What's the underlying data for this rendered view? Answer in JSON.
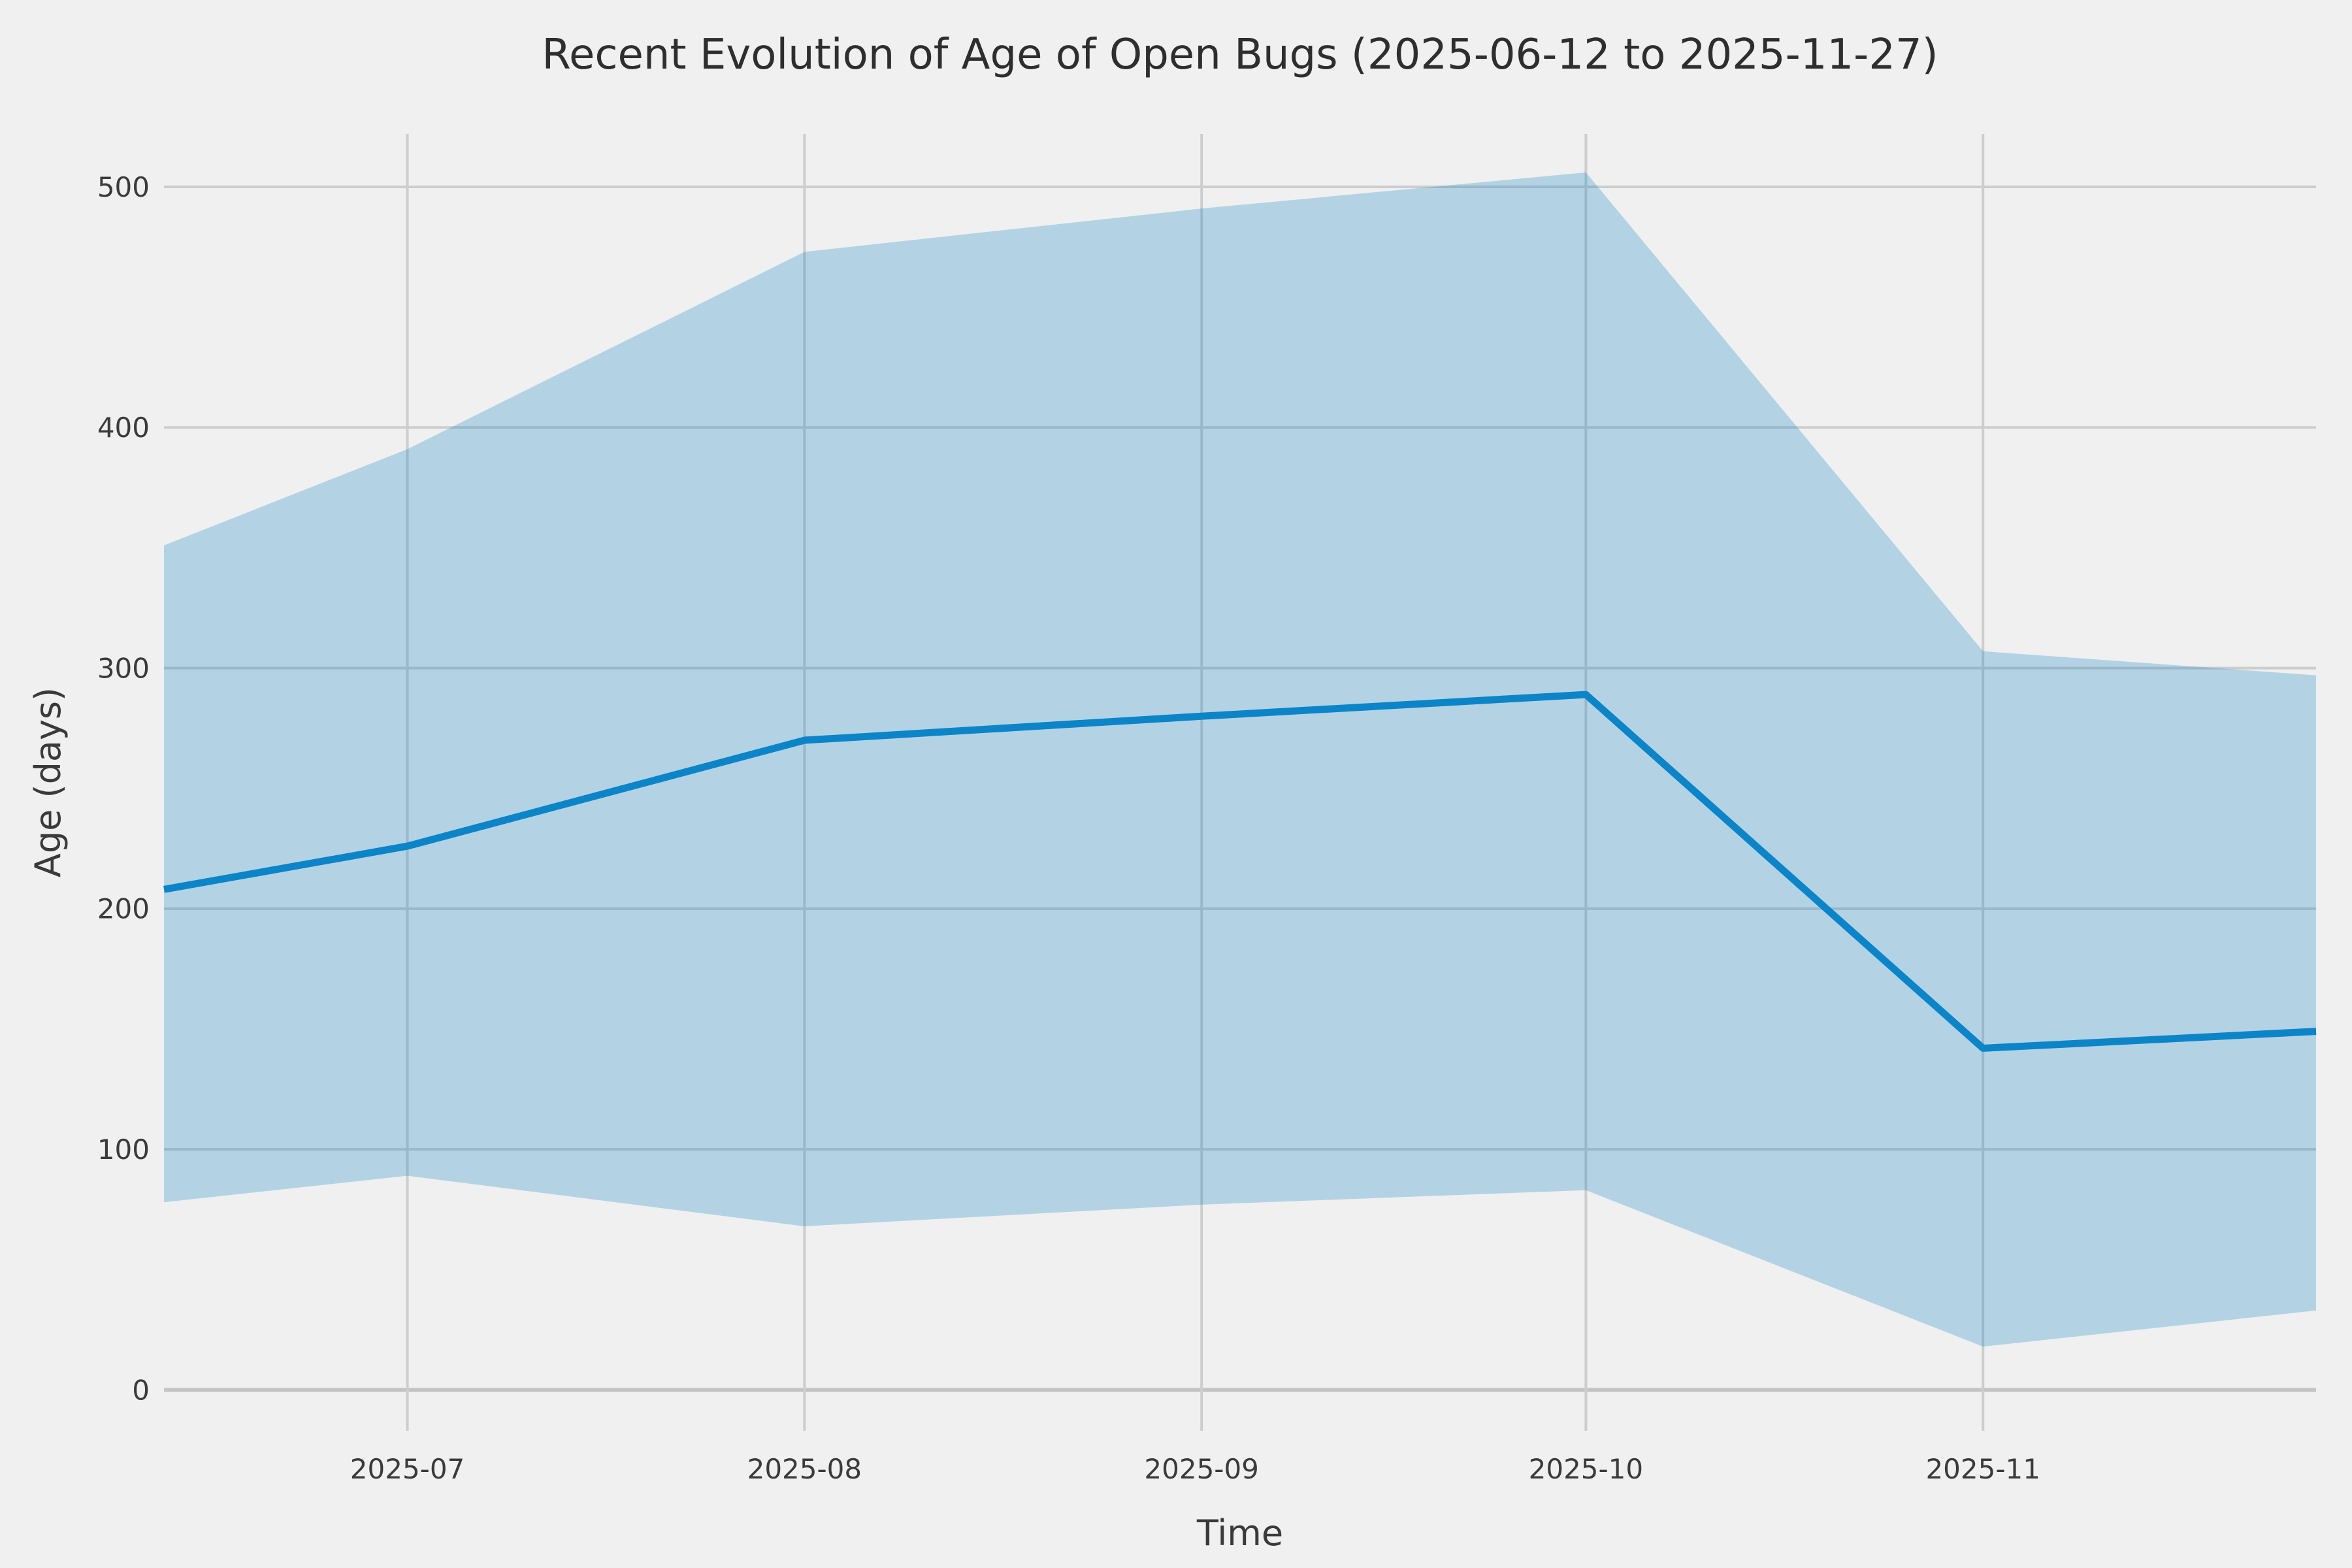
{
  "chart_data": {
    "type": "line",
    "title": "Recent Evolution of Age of Open Bugs (2025-06-12 to 2025-11-27)",
    "xlabel": "Time",
    "ylabel": "Age (days)",
    "date_range": {
      "start": "2025-06-12",
      "end": "2025-11-27"
    },
    "x_dates": [
      "2025-06-12",
      "2025-07-01",
      "2025-08-01",
      "2025-09-01",
      "2025-10-01",
      "2025-11-01",
      "2025-11-27"
    ],
    "x_days": [
      0,
      19,
      50,
      81,
      111,
      142,
      168
    ],
    "series": [
      {
        "name": "median_age_line",
        "values": [
          208,
          226,
          270,
          280,
          289,
          142,
          149
        ]
      },
      {
        "name": "band_upper_bound",
        "values": [
          351,
          391,
          473,
          491,
          506,
          307,
          297
        ]
      },
      {
        "name": "band_lower_bound",
        "values": [
          78,
          89,
          68,
          77,
          83,
          18,
          33
        ]
      }
    ],
    "xticks": [
      {
        "day": 19,
        "label": "2025-07"
      },
      {
        "day": 50,
        "label": "2025-08"
      },
      {
        "day": 81,
        "label": "2025-09"
      },
      {
        "day": 111,
        "label": "2025-10"
      },
      {
        "day": 142,
        "label": "2025-11"
      }
    ],
    "yticks": [
      0,
      100,
      200,
      300,
      400,
      500
    ],
    "xlim_days": [
      0,
      168
    ],
    "ylim": [
      -17,
      522
    ],
    "grid": true,
    "legend_position": "none",
    "colors": {
      "line": "#0c84c8",
      "band_fill": "rgba(14,132,199,0.27)",
      "background": "#f0f0f0",
      "gridline": "#cdcdcd",
      "text": "#3a3a3a",
      "title_text": "#2e2e2e"
    }
  }
}
